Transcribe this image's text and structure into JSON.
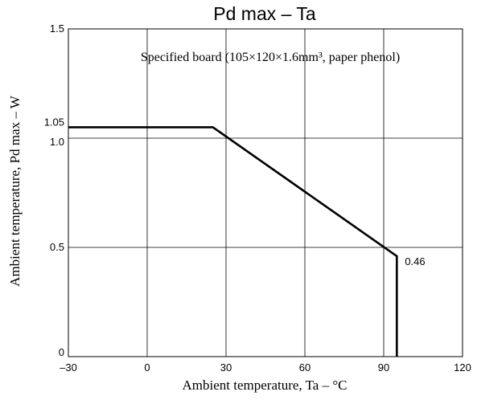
{
  "chart_data": {
    "type": "line",
    "title": "Pd max  –  Ta",
    "annotation": "Specified board (105×120×1.6mm³, paper phenol)",
    "xlabel": "Ambient temperature, Ta  –  °C",
    "ylabel": "Ambient temperature, Pd max  –  W",
    "xlim": [
      -30,
      120
    ],
    "ylim": [
      0,
      1.5
    ],
    "x_ticks": [
      -30,
      0,
      30,
      60,
      90,
      120
    ],
    "x_tick_labels": [
      "–30",
      "0",
      "30",
      "60",
      "90",
      "120"
    ],
    "y_ticks": [
      0,
      0.5,
      1.0,
      1.05,
      1.5
    ],
    "y_tick_labels": [
      "0",
      "0.5",
      "1.0",
      "1.05",
      "1.5"
    ],
    "grid": true,
    "series": [
      {
        "x": [
          -30,
          25,
          95,
          95
        ],
        "y": [
          1.05,
          1.05,
          0.46,
          0
        ]
      }
    ],
    "data_labels": [
      {
        "x": 95,
        "y": 0.46,
        "text": "0.46"
      }
    ]
  }
}
